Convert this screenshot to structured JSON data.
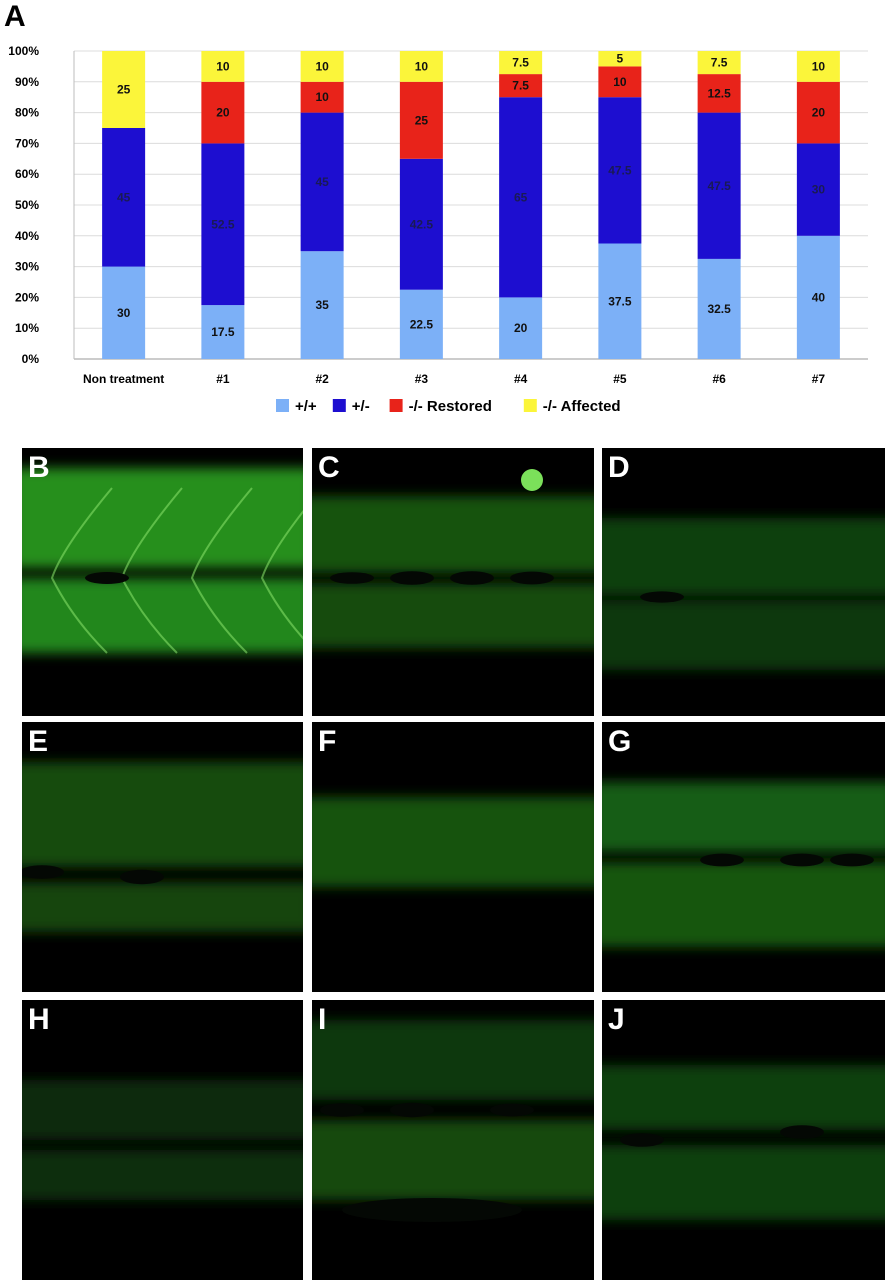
{
  "figure": {
    "panel_a_label": "A"
  },
  "chart_data": {
    "type": "bar",
    "stacked": true,
    "categories": [
      "Non treatment",
      "#1",
      "#2",
      "#3",
      "#4",
      "#5",
      "#6",
      "#7"
    ],
    "series": [
      {
        "name": "+/+",
        "color": "#7cb0f7",
        "values": [
          30,
          17.5,
          35,
          22.5,
          20,
          37.5,
          32.5,
          40
        ]
      },
      {
        "name": "+/-",
        "color": "#1d0ed0",
        "values": [
          45,
          52.5,
          45,
          42.5,
          65,
          47.5,
          47.5,
          30
        ]
      },
      {
        "name": "-/- Restored",
        "color": "#e8231a",
        "values": [
          0,
          20,
          10,
          25,
          7.5,
          10,
          12.5,
          20
        ]
      },
      {
        "name": "-/- Affected",
        "color": "#fbf53a",
        "values": [
          25,
          10,
          10,
          10,
          7.5,
          5,
          7.5,
          10
        ]
      }
    ],
    "data_labels": [
      [
        "30",
        "17.5",
        "35",
        "22.5",
        "20",
        "37.5",
        "32.5",
        "40"
      ],
      [
        "45",
        "52.5",
        "45",
        "42.5",
        "65",
        "47.5",
        "47.5",
        "30"
      ],
      [
        "",
        "20",
        "10",
        "25",
        "7.5",
        "10",
        "12.5",
        "20"
      ],
      [
        "25",
        "10",
        "10",
        "10",
        "7.5",
        "5",
        "7.5",
        "10"
      ]
    ],
    "y_ticks": [
      "0%",
      "10%",
      "20%",
      "30%",
      "40%",
      "50%",
      "60%",
      "70%",
      "80%",
      "90%",
      "100%"
    ],
    "ylim": [
      0,
      100
    ],
    "grid": true,
    "legend_position": "bottom"
  },
  "micrographs": [
    {
      "label": "B"
    },
    {
      "label": "C"
    },
    {
      "label": "D"
    },
    {
      "label": "E"
    },
    {
      "label": "F"
    },
    {
      "label": "G"
    },
    {
      "label": "H"
    },
    {
      "label": "I"
    },
    {
      "label": "J"
    }
  ]
}
